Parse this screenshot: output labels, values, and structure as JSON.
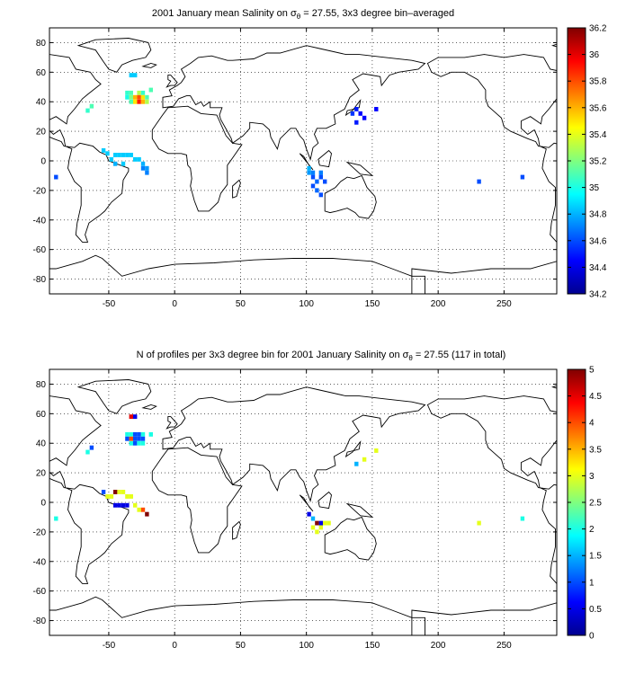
{
  "chart_data": [
    {
      "type": "heatmap",
      "title_parts": [
        "2001 January mean Salinity on ",
        "σ",
        "θ",
        " = 27.55, 3x3 degree bin–averaged"
      ],
      "xlabel": "",
      "ylabel": "",
      "xlim": [
        -95,
        290
      ],
      "ylim": [
        -90,
        90
      ],
      "xticks": [
        -50,
        0,
        50,
        100,
        150,
        200,
        250
      ],
      "yticks": [
        -80,
        -60,
        -40,
        -20,
        0,
        20,
        40,
        60,
        80
      ],
      "grid": true,
      "colorbar": {
        "colormap": "jet",
        "range": [
          34.2,
          36.2
        ],
        "ticks": [
          "36.2",
          "36",
          "35.8",
          "35.6",
          "35.4",
          "35.2",
          "35",
          "34.8",
          "34.6",
          "34.4",
          "34.2"
        ]
      },
      "cells": [
        {
          "lon": -33,
          "lat": 58,
          "value": 34.85
        },
        {
          "lon": -30,
          "lat": 58,
          "value": 34.85
        },
        {
          "lon": -36,
          "lat": 46,
          "value": 35.05
        },
        {
          "lon": -33,
          "lat": 46,
          "value": 35.1
        },
        {
          "lon": -27,
          "lat": 46,
          "value": 35.3
        },
        {
          "lon": -24,
          "lat": 46,
          "value": 35.05
        },
        {
          "lon": -18,
          "lat": 48,
          "value": 35.1
        },
        {
          "lon": -36,
          "lat": 43,
          "value": 35.0
        },
        {
          "lon": -33,
          "lat": 43,
          "value": 35.2
        },
        {
          "lon": -30,
          "lat": 43,
          "value": 35.6
        },
        {
          "lon": -27,
          "lat": 43,
          "value": 35.8
        },
        {
          "lon": -24,
          "lat": 43,
          "value": 35.5
        },
        {
          "lon": -21,
          "lat": 43,
          "value": 35.1
        },
        {
          "lon": -33,
          "lat": 40,
          "value": 35.1
        },
        {
          "lon": -30,
          "lat": 40,
          "value": 35.5
        },
        {
          "lon": -27,
          "lat": 40,
          "value": 35.9
        },
        {
          "lon": -24,
          "lat": 40,
          "value": 35.6
        },
        {
          "lon": -21,
          "lat": 40,
          "value": 35.3
        },
        {
          "lon": -63,
          "lat": 37,
          "value": 35.1
        },
        {
          "lon": -66,
          "lat": 34,
          "value": 35.05
        },
        {
          "lon": -54,
          "lat": 7,
          "value": 34.85
        },
        {
          "lon": -51,
          "lat": 5,
          "value": 34.85
        },
        {
          "lon": -45,
          "lat": 4,
          "value": 34.85
        },
        {
          "lon": -42,
          "lat": 4,
          "value": 34.85
        },
        {
          "lon": -39,
          "lat": 4,
          "value": 34.85
        },
        {
          "lon": -36,
          "lat": 4,
          "value": 34.85
        },
        {
          "lon": -33,
          "lat": 4,
          "value": 34.85
        },
        {
          "lon": -48,
          "lat": 1,
          "value": 34.85
        },
        {
          "lon": -30,
          "lat": 1,
          "value": 34.85
        },
        {
          "lon": -27,
          "lat": 1,
          "value": 34.85
        },
        {
          "lon": -45,
          "lat": -2,
          "value": 34.8
        },
        {
          "lon": -39,
          "lat": -2,
          "value": 34.85
        },
        {
          "lon": -24,
          "lat": -2,
          "value": 34.8
        },
        {
          "lon": -24,
          "lat": -5,
          "value": 34.7
        },
        {
          "lon": -21,
          "lat": -5,
          "value": 34.75
        },
        {
          "lon": -21,
          "lat": -8,
          "value": 34.7
        },
        {
          "lon": -90,
          "lat": -11,
          "value": 34.6
        },
        {
          "lon": 138,
          "lat": 35,
          "value": 34.5
        },
        {
          "lon": 141,
          "lat": 32,
          "value": 34.45
        },
        {
          "lon": 135,
          "lat": 32,
          "value": 34.55
        },
        {
          "lon": 144,
          "lat": 29,
          "value": 34.45
        },
        {
          "lon": 138,
          "lat": 26,
          "value": 34.5
        },
        {
          "lon": 153,
          "lat": 35,
          "value": 34.45
        },
        {
          "lon": 102,
          "lat": -8,
          "value": 34.75
        },
        {
          "lon": 105,
          "lat": -8,
          "value": 34.7
        },
        {
          "lon": 111,
          "lat": -8,
          "value": 34.7
        },
        {
          "lon": 105,
          "lat": -11,
          "value": 34.6
        },
        {
          "lon": 111,
          "lat": -11,
          "value": 34.6
        },
        {
          "lon": 108,
          "lat": -14,
          "value": 34.65
        },
        {
          "lon": 114,
          "lat": -14,
          "value": 34.6
        },
        {
          "lon": 105,
          "lat": -17,
          "value": 34.6
        },
        {
          "lon": 108,
          "lat": -20,
          "value": 34.65
        },
        {
          "lon": 111,
          "lat": -23,
          "value": 34.6
        },
        {
          "lon": 102,
          "lat": -5,
          "value": 34.8
        },
        {
          "lon": 231,
          "lat": -14,
          "value": 34.6
        },
        {
          "lon": 264,
          "lat": -11,
          "value": 34.6
        }
      ]
    },
    {
      "type": "heatmap",
      "title_parts": [
        "N of profiles per 3x3 degree bin for 2001 January Salinity on ",
        "σ",
        "θ",
        " = 27.55 (117 in total)"
      ],
      "xlabel": "",
      "ylabel": "",
      "xlim": [
        -95,
        290
      ],
      "ylim": [
        -90,
        90
      ],
      "xticks": [
        -50,
        0,
        50,
        100,
        150,
        200,
        250
      ],
      "yticks": [
        -80,
        -60,
        -40,
        -20,
        0,
        20,
        40,
        60,
        80
      ],
      "grid": true,
      "colorbar": {
        "colormap": "jet",
        "range": [
          0,
          5
        ],
        "ticks": [
          "5",
          "4.5",
          "4",
          "3.5",
          "3",
          "2.5",
          "2",
          "1.5",
          "1",
          "0.5",
          "0"
        ]
      },
      "cells": [
        {
          "lon": -33,
          "lat": 58,
          "value": 4.5
        },
        {
          "lon": -30,
          "lat": 58,
          "value": 0.5
        },
        {
          "lon": -36,
          "lat": 46,
          "value": 2
        },
        {
          "lon": -33,
          "lat": 46,
          "value": 2
        },
        {
          "lon": -30,
          "lat": 46,
          "value": 1
        },
        {
          "lon": -27,
          "lat": 46,
          "value": 1
        },
        {
          "lon": -24,
          "lat": 46,
          "value": 2
        },
        {
          "lon": -18,
          "lat": 46,
          "value": 2
        },
        {
          "lon": -36,
          "lat": 43,
          "value": 1
        },
        {
          "lon": -33,
          "lat": 43,
          "value": 4
        },
        {
          "lon": -30,
          "lat": 43,
          "value": 1
        },
        {
          "lon": -27,
          "lat": 43,
          "value": 1
        },
        {
          "lon": -24,
          "lat": 43,
          "value": 1
        },
        {
          "lon": -33,
          "lat": 40,
          "value": 2
        },
        {
          "lon": -30,
          "lat": 40,
          "value": 1
        },
        {
          "lon": -27,
          "lat": 40,
          "value": 2
        },
        {
          "lon": -24,
          "lat": 40,
          "value": 2
        },
        {
          "lon": -63,
          "lat": 37,
          "value": 1
        },
        {
          "lon": -66,
          "lat": 34,
          "value": 2
        },
        {
          "lon": -54,
          "lat": 7,
          "value": 1
        },
        {
          "lon": -51,
          "lat": 4,
          "value": 3
        },
        {
          "lon": -45,
          "lat": 7,
          "value": 5
        },
        {
          "lon": -42,
          "lat": 7,
          "value": 3
        },
        {
          "lon": -39,
          "lat": 7,
          "value": 3
        },
        {
          "lon": -36,
          "lat": 4,
          "value": 3
        },
        {
          "lon": -33,
          "lat": 4,
          "value": 3
        },
        {
          "lon": -48,
          "lat": 4,
          "value": 3
        },
        {
          "lon": -45,
          "lat": -2,
          "value": 0.5
        },
        {
          "lon": -42,
          "lat": -2,
          "value": 0.5
        },
        {
          "lon": -39,
          "lat": -2,
          "value": 0.5
        },
        {
          "lon": -36,
          "lat": -2,
          "value": 0.5
        },
        {
          "lon": -30,
          "lat": -2,
          "value": 3
        },
        {
          "lon": -27,
          "lat": -5,
          "value": 3
        },
        {
          "lon": -24,
          "lat": -5,
          "value": 4
        },
        {
          "lon": -21,
          "lat": -8,
          "value": 5
        },
        {
          "lon": -90,
          "lat": -11,
          "value": 2
        },
        {
          "lon": 138,
          "lat": 26,
          "value": 1.5
        },
        {
          "lon": 144,
          "lat": 29,
          "value": 3
        },
        {
          "lon": 153,
          "lat": 35,
          "value": 3
        },
        {
          "lon": 102,
          "lat": -8,
          "value": 0.5
        },
        {
          "lon": 105,
          "lat": -11,
          "value": 1.5
        },
        {
          "lon": 108,
          "lat": -14,
          "value": 5
        },
        {
          "lon": 111,
          "lat": -14,
          "value": 0.5
        },
        {
          "lon": 114,
          "lat": -14,
          "value": 3
        },
        {
          "lon": 117,
          "lat": -14,
          "value": 3
        },
        {
          "lon": 105,
          "lat": -17,
          "value": 3
        },
        {
          "lon": 108,
          "lat": -20,
          "value": 3
        },
        {
          "lon": 111,
          "lat": -17,
          "value": 3
        },
        {
          "lon": 231,
          "lat": -14,
          "value": 3
        },
        {
          "lon": 264,
          "lat": -11,
          "value": 2
        }
      ]
    }
  ]
}
